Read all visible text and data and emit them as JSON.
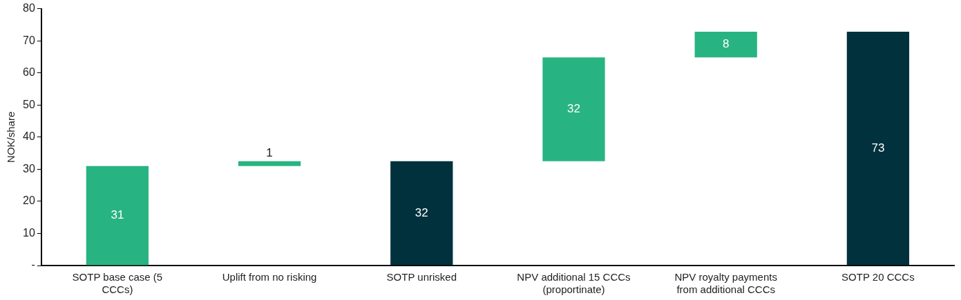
{
  "chart_data": {
    "type": "bar",
    "ylabel": "NOK/share",
    "categories": [
      "SOTP base case (5 CCCs)",
      "Uplift from no risking",
      "SOTP unrisked",
      "NPV additional 15 CCCs (proportinate)",
      "NPV royalty payments from additional CCCs",
      "SOTP 20 CCCs"
    ],
    "values": [
      31,
      1.5,
      32.5,
      32.3,
      8,
      72.8
    ],
    "base": [
      0,
      31,
      0,
      32.5,
      64.8,
      0
    ],
    "colors": [
      "#28b482",
      "#28b482",
      "#00313c",
      "#28b482",
      "#28b482",
      "#00313c"
    ],
    "value_labels": [
      "31",
      "1",
      "32",
      "32",
      "8",
      "73"
    ],
    "ylim": [
      0,
      80
    ],
    "yticks": [
      {
        "value": 0,
        "label": "-"
      },
      10,
      20,
      30,
      40,
      50,
      60,
      70,
      80
    ],
    "grid": false,
    "legend": false
  }
}
